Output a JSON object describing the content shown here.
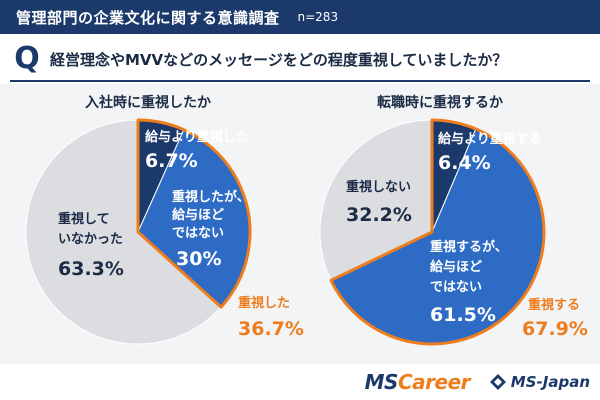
{
  "header": {
    "title": "管理部門の企業文化に関する意識調査",
    "sample": "n=283"
  },
  "question": {
    "icon": "Q",
    "text": "経営理念やMVVなどのメッセージをどの程度重視していましたか？"
  },
  "colors": {
    "navy": "#1b3a6b",
    "blue": "#2d6bc4",
    "grey": "#dcdde0",
    "orange": "#ee7d1e"
  },
  "chart_data": [
    {
      "type": "pie",
      "title": "入社時に重視したか",
      "slices": [
        {
          "label": "給与より重視した",
          "value": 6.7,
          "display": "6.7%",
          "color": "#1b3a6b"
        },
        {
          "label": "重視したが、給与ほどではない",
          "value": 30.0,
          "display": "30%",
          "color": "#2d6bc4"
        },
        {
          "label": "重視していなかった",
          "value": 63.3,
          "display": "63.3%",
          "color": "#dcdde0"
        }
      ],
      "highlight": {
        "label": "重視した",
        "value": 36.7,
        "display": "36.7%"
      }
    },
    {
      "type": "pie",
      "title": "転職時に重視するか",
      "slices": [
        {
          "label": "給与より重視する",
          "value": 6.4,
          "display": "6.4%",
          "color": "#1b3a6b"
        },
        {
          "label": "重視するが、給与ほどではない",
          "value": 61.5,
          "display": "61.5%",
          "color": "#2d6bc4"
        },
        {
          "label": "重視しない",
          "value": 32.2,
          "display": "32.2%",
          "color": "#dcdde0"
        }
      ],
      "highlight": {
        "label": "重視する",
        "value": 67.9,
        "display": "67.9%"
      }
    }
  ],
  "labels": {
    "left": {
      "s1_line1": "給与より重視した",
      "s2_line1": "重視したが、",
      "s2_line2": "給与ほど",
      "s2_line3": "ではない",
      "s3_line1": "重視して",
      "s3_line2": "いなかった"
    },
    "right": {
      "s1_line1": "給与より重視する",
      "s2_line1": "重視するが、",
      "s2_line2": "給与ほど",
      "s2_line3": "ではない",
      "s3_line1": "重視しない"
    }
  },
  "footer": {
    "logo1_main": "MS",
    "logo1_accent": "Career",
    "logo2": "MS-Japan"
  }
}
